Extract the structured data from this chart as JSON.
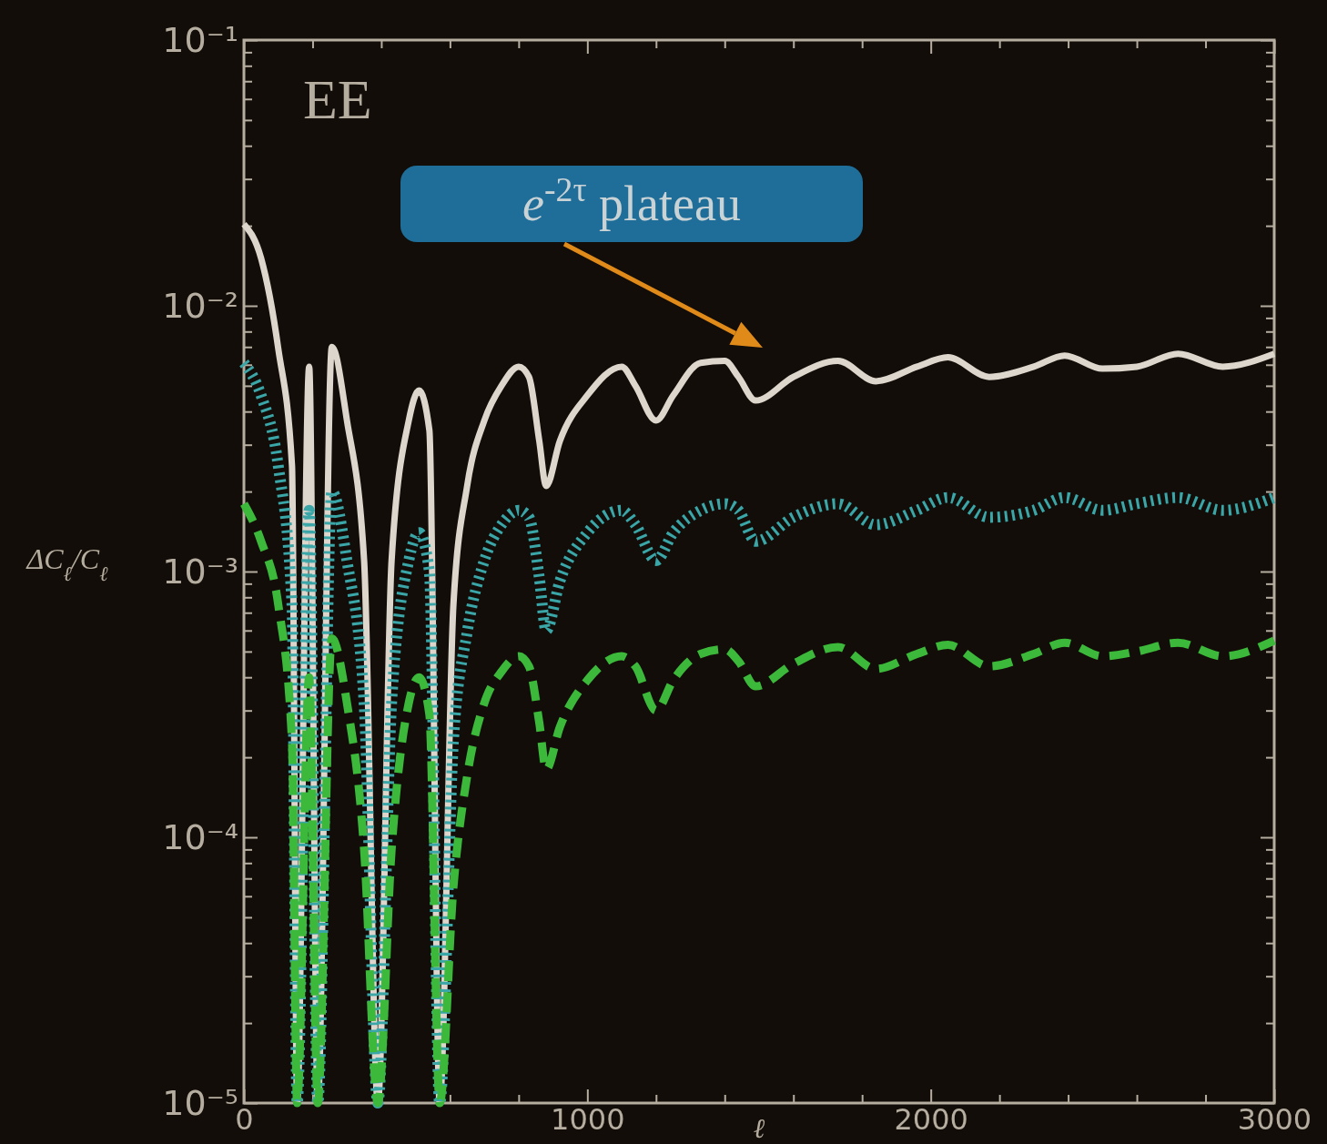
{
  "chart_data": {
    "type": "line",
    "xlabel": "ℓ",
    "ylabel": "ΔC$_{ℓ}$/C$_{ℓ}$",
    "log": "y",
    "xlim": [
      0,
      3000
    ],
    "ylim": [
      1e-05,
      0.1
    ],
    "xticks": [
      0,
      {
        "value": 200,
        "label": null
      },
      {
        "value": 400,
        "label": null
      },
      {
        "value": 600,
        "label": null
      },
      {
        "value": 800,
        "label": null
      },
      1000,
      {
        "value": 1200,
        "label": null
      },
      {
        "value": 1400,
        "label": null
      },
      {
        "value": 1600,
        "label": null
      },
      {
        "value": 1800,
        "label": null
      },
      2000,
      {
        "value": 2200,
        "label": null
      },
      {
        "value": 2400,
        "label": null
      },
      {
        "value": 2600,
        "label": null
      },
      {
        "value": 2800,
        "label": null
      },
      3000
    ],
    "yticks": [
      {
        "value": 1e-05,
        "label": "10⁻⁵"
      },
      {
        "value": 2e-05,
        "label": null
      },
      {
        "value": 3e-05,
        "label": null
      },
      {
        "value": 4e-05,
        "label": null
      },
      {
        "value": 5e-05,
        "label": null
      },
      {
        "value": 6e-05,
        "label": null
      },
      {
        "value": 7e-05,
        "label": null
      },
      {
        "value": 8e-05,
        "label": null
      },
      {
        "value": 9e-05,
        "label": null
      },
      {
        "value": 0.0001,
        "label": "10⁻⁴"
      },
      {
        "value": 0.0002,
        "label": null
      },
      {
        "value": 0.0003,
        "label": null
      },
      {
        "value": 0.0004,
        "label": null
      },
      {
        "value": 0.0005,
        "label": null
      },
      {
        "value": 0.0006,
        "label": null
      },
      {
        "value": 0.0007,
        "label": null
      },
      {
        "value": 0.0008,
        "label": null
      },
      {
        "value": 0.0009,
        "label": null
      },
      {
        "value": 0.001,
        "label": "10⁻³"
      },
      {
        "value": 0.002,
        "label": null
      },
      {
        "value": 0.003,
        "label": null
      },
      {
        "value": 0.004,
        "label": null
      },
      {
        "value": 0.005,
        "label": null
      },
      {
        "value": 0.006,
        "label": null
      },
      {
        "value": 0.007,
        "label": null
      },
      {
        "value": 0.008,
        "label": null
      },
      {
        "value": 0.009,
        "label": null
      },
      {
        "value": 0.01,
        "label": "10⁻²"
      },
      {
        "value": 0.02,
        "label": null
      },
      {
        "value": 0.03,
        "label": null
      },
      {
        "value": 0.04,
        "label": null
      },
      {
        "value": 0.05,
        "label": null
      },
      {
        "value": 0.06,
        "label": null
      },
      {
        "value": 0.07,
        "label": null
      },
      {
        "value": 0.08,
        "label": null
      },
      {
        "value": 0.09,
        "label": null
      },
      {
        "value": 0.1,
        "label": "10⁻¹"
      }
    ],
    "annotations": [
      "EE",
      "e$^{-2τ}$ plateau"
    ],
    "x": [
      0,
      50,
      100,
      140,
      155,
      190,
      215,
      256,
      300,
      350,
      390,
      430,
      480,
      510,
      540,
      570,
      610,
      650,
      700,
      750,
      800,
      830,
      860,
      880,
      920,
      1000,
      1100,
      1140,
      1200,
      1250,
      1330,
      1400,
      1440,
      1490,
      1600,
      1730,
      1840,
      1960,
      2050,
      2170,
      2300,
      2390,
      2500,
      2600,
      2720,
      2850,
      3000
    ],
    "series": [
      {
        "color": "#ddd6cc",
        "line_style": "solid",
        "values": [
          0.0203,
          0.0151,
          0.0069,
          0.0025,
          1e-05,
          0.0059,
          1e-05,
          0.007,
          0.0037,
          0.0011,
          1e-05,
          0.0011,
          0.0037,
          0.0048,
          0.0034,
          1e-05,
          0.00075,
          0.0021,
          0.0037,
          0.005,
          0.0059,
          0.0054,
          0.0031,
          0.0021,
          0.0031,
          0.0046,
          0.0059,
          0.005,
          0.0037,
          0.0046,
          0.0061,
          0.0062,
          0.0054,
          0.0044,
          0.0054,
          0.0062,
          0.0052,
          0.0059,
          0.0064,
          0.0054,
          0.0059,
          0.0065,
          0.0058,
          0.0059,
          0.0066,
          0.0059,
          0.0066
        ]
      },
      {
        "color": "#3aa6a8",
        "line_style": "dotted",
        "values": [
          0.0061,
          0.0046,
          0.0025,
          0.00075,
          1e-05,
          0.0017,
          1e-05,
          0.002,
          0.0011,
          0.00032,
          1e-05,
          0.00032,
          0.0011,
          0.0014,
          0.001,
          1e-05,
          0.00023,
          0.00059,
          0.0011,
          0.0015,
          0.0017,
          0.0016,
          0.00095,
          0.0006,
          0.00092,
          0.0014,
          0.0017,
          0.0015,
          0.0011,
          0.0014,
          0.0017,
          0.0018,
          0.0017,
          0.0013,
          0.0016,
          0.0018,
          0.0015,
          0.0017,
          0.0019,
          0.0016,
          0.0017,
          0.0019,
          0.0017,
          0.0018,
          0.0019,
          0.0017,
          0.0019
        ]
      },
      {
        "color": "#3cb83a",
        "line_style": "dashed",
        "values": [
          0.0018,
          0.0013,
          0.00075,
          0.00023,
          1e-05,
          0.0004,
          1e-05,
          0.00056,
          0.00032,
          9e-05,
          1e-05,
          9e-05,
          0.00032,
          0.0004,
          0.00029,
          1e-05,
          6.5e-05,
          0.00017,
          0.00032,
          0.00042,
          0.00048,
          0.00044,
          0.00027,
          0.00018,
          0.00026,
          0.00039,
          0.00048,
          0.00044,
          0.0003,
          0.00039,
          0.00049,
          0.00051,
          0.00046,
          0.00037,
          0.00045,
          0.00052,
          0.00043,
          0.00049,
          0.00053,
          0.00044,
          0.00049,
          0.00054,
          0.00048,
          0.0005,
          0.00054,
          0.00048,
          0.00055
        ]
      }
    ]
  }
}
